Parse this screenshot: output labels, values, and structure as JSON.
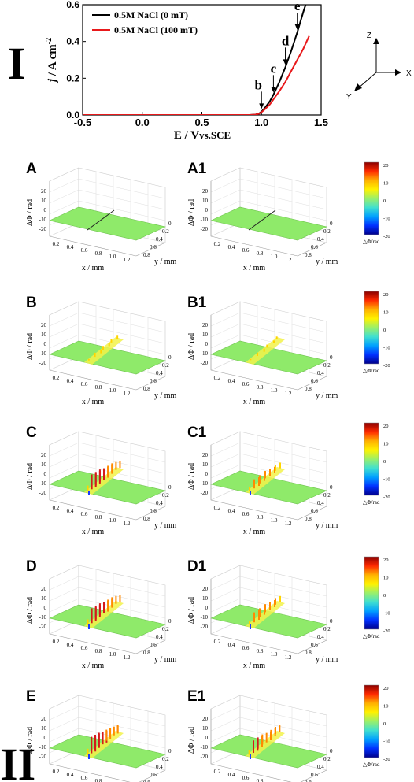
{
  "section_labels": {
    "top": "I",
    "bottom": "II"
  },
  "chart_data": [
    {
      "type": "line",
      "xlabel_main": "E / V",
      "xlabel_sub": "vs.SCE",
      "ylabel_main": "j",
      "ylabel_unit": " / A cm",
      "ylabel_exp": "-2",
      "xlim": [
        -0.5,
        1.5
      ],
      "ylim": [
        0,
        0.6
      ],
      "x_ticks": [
        "-0.5",
        "0.0",
        "0.5",
        "1.0",
        "1.5"
      ],
      "y_ticks": [
        "0.0",
        "0.2",
        "0.4",
        "0.6"
      ],
      "legend_position": "top-left",
      "series": [
        {
          "name": "0.5M NaCl (0 mT)",
          "color": "#000000",
          "x": [
            -0.5,
            0.9,
            0.95,
            0.98,
            1.0,
            1.03,
            1.07,
            1.1,
            1.15,
            1.2,
            1.25,
            1.3,
            1.35,
            1.4
          ],
          "y": [
            0.0,
            0.0,
            0.002,
            0.008,
            0.018,
            0.04,
            0.075,
            0.11,
            0.18,
            0.26,
            0.35,
            0.45,
            0.56,
            0.66
          ]
        },
        {
          "name": "0.5M NaCl (100 mT)",
          "color": "#e8191b",
          "x": [
            -0.5,
            0.9,
            0.95,
            0.98,
            1.0,
            1.03,
            1.07,
            1.1,
            1.15,
            1.2,
            1.25,
            1.3,
            1.35,
            1.4
          ],
          "y": [
            0.0,
            0.0,
            0.002,
            0.007,
            0.015,
            0.032,
            0.058,
            0.085,
            0.13,
            0.18,
            0.24,
            0.3,
            0.36,
            0.43
          ]
        }
      ],
      "annotations": [
        {
          "label": "b",
          "x": 1.0,
          "y": 0.02
        },
        {
          "label": "c",
          "x": 1.1,
          "y": 0.11
        },
        {
          "label": "d",
          "x": 1.2,
          "y": 0.26
        },
        {
          "label": "e",
          "x": 1.3,
          "y": 0.45
        }
      ]
    },
    {
      "type": "heatmap",
      "panels": [
        {
          "label": "A",
          "intensity": 0.0
        },
        {
          "label": "A1",
          "intensity": 0.0
        },
        {
          "label": "B",
          "intensity": 0.25
        },
        {
          "label": "B1",
          "intensity": 0.2
        },
        {
          "label": "C",
          "intensity": 0.9
        },
        {
          "label": "C1",
          "intensity": 0.55
        },
        {
          "label": "D",
          "intensity": 0.9
        },
        {
          "label": "D1",
          "intensity": 0.6
        },
        {
          "label": "E",
          "intensity": 1.0
        },
        {
          "label": "E1",
          "intensity": 0.75
        }
      ],
      "zlabel": "ΔΦ / rad",
      "xlabel": "x / mm",
      "ylabel": "y / mm",
      "z_ticks": [
        "20",
        "10",
        "0",
        "-10",
        "-20"
      ],
      "x_ticks": [
        "0.2",
        "0.4",
        "0.6",
        "0.8",
        "1.0",
        "1.2"
      ],
      "y_ticks": [
        "0",
        "0.2",
        "0.4",
        "0.6",
        "0.8"
      ],
      "colorbar_ticks": [
        "20",
        "10",
        "0",
        "-10",
        "-20"
      ],
      "colorbar_label": "△Φ/rad",
      "colorbar_colors": [
        "#8b0000",
        "#ff2a00",
        "#ffb000",
        "#fff200",
        "#9af06a",
        "#40e0d0",
        "#00a0ff",
        "#0030ff",
        "#00008b"
      ]
    }
  ],
  "axes_icon": {
    "z": "Z",
    "x": "X",
    "y": "Y"
  }
}
